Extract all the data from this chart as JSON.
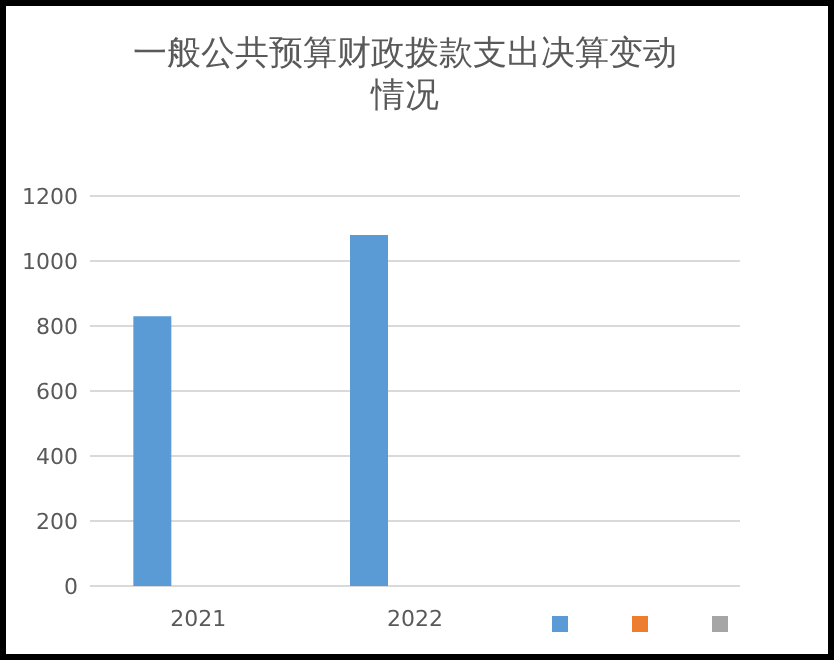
{
  "chart_data": {
    "type": "bar",
    "title": "一般公共预算财政拨款支出决算变动情况",
    "categories": [
      "2021",
      "2022",
      null
    ],
    "series": [
      {
        "color": "#5b9bd5",
        "values": [
          830,
          1080,
          null
        ]
      },
      {
        "color": "#ed7d31",
        "values": [
          null,
          null,
          null
        ]
      },
      {
        "color": "#a5a5a5",
        "values": [
          null,
          null,
          null
        ]
      }
    ],
    "ylim": [
      0,
      1200
    ],
    "yticks": [
      0,
      200,
      400,
      600,
      800,
      1000,
      1200
    ],
    "grid": "y"
  }
}
